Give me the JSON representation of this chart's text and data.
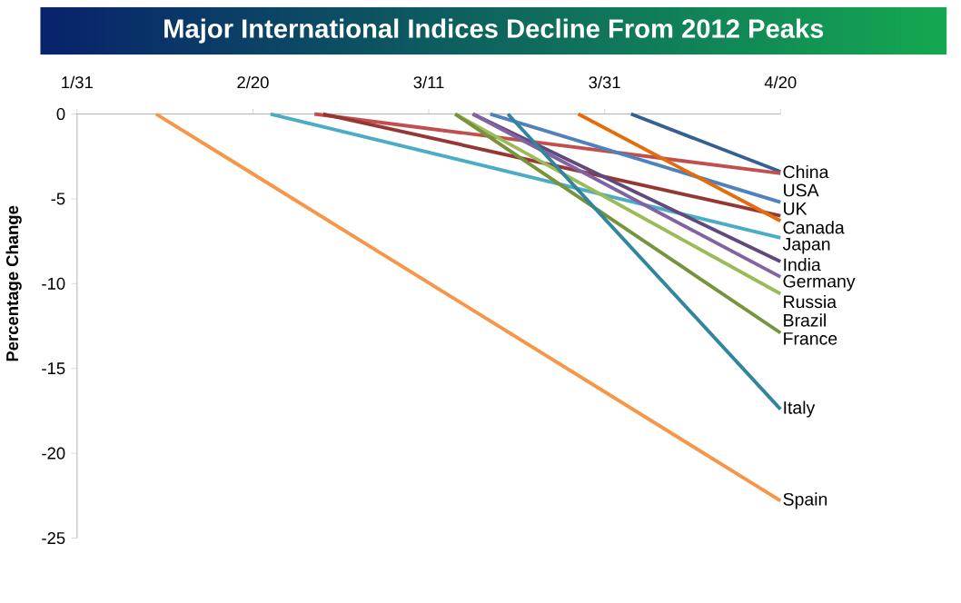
{
  "chart_data": {
    "type": "line",
    "title": "Major International Indices Decline From 2012 Peaks",
    "ylabel": "Percentage Change",
    "xlim": [
      "2012-01-31",
      "2012-04-20"
    ],
    "xticks": [
      {
        "value": "2012-01-31",
        "label": "1/31"
      },
      {
        "value": "2012-02-20",
        "label": "2/20"
      },
      {
        "value": "2012-03-11",
        "label": "3/11"
      },
      {
        "value": "2012-03-31",
        "label": "3/31"
      },
      {
        "value": "2012-04-20",
        "label": "4/20"
      }
    ],
    "ylim": [
      -25,
      0
    ],
    "yticks": [
      0,
      -5,
      -10,
      -15,
      -20,
      -25
    ],
    "grid": false,
    "legend": false,
    "marker": "none",
    "line_style": "solid",
    "series": [
      {
        "name": "China",
        "color": "#376092",
        "x": [
          "2012-04-03",
          "2012-04-20"
        ],
        "values": [
          0,
          -3.4
        ]
      },
      {
        "name": "USA",
        "color": "#c0504d",
        "x": [
          "2012-02-27",
          "2012-04-20"
        ],
        "values": [
          0,
          -3.5
        ]
      },
      {
        "name": "UK",
        "color": "#4f81bd",
        "x": [
          "2012-03-18",
          "2012-04-20"
        ],
        "values": [
          0,
          -5.2
        ]
      },
      {
        "name": "Canada",
        "color": "#953735",
        "x": [
          "2012-02-28",
          "2012-04-20"
        ],
        "values": [
          0,
          -6.0
        ]
      },
      {
        "name": "Japan",
        "color": "#e46c0a",
        "x": [
          "2012-03-28",
          "2012-04-20"
        ],
        "values": [
          0,
          -6.3
        ]
      },
      {
        "name": "India",
        "color": "#4bacc6",
        "x": [
          "2012-02-22",
          "2012-04-20"
        ],
        "values": [
          0,
          -7.3
        ]
      },
      {
        "name": "Germany",
        "color": "#604a7b",
        "x": [
          "2012-03-16",
          "2012-04-20"
        ],
        "values": [
          0,
          -8.7
        ]
      },
      {
        "name": "Russia",
        "color": "#8064a2",
        "x": [
          "2012-03-16",
          "2012-04-20"
        ],
        "values": [
          0,
          -9.6
        ]
      },
      {
        "name": "Brazil",
        "color": "#9bbb59",
        "x": [
          "2012-03-14",
          "2012-04-20"
        ],
        "values": [
          0,
          -10.6
        ]
      },
      {
        "name": "France",
        "color": "#77933c",
        "x": [
          "2012-03-14",
          "2012-04-20"
        ],
        "values": [
          0,
          -12.9
        ]
      },
      {
        "name": "Italy",
        "color": "#31859c",
        "x": [
          "2012-03-20",
          "2012-04-20"
        ],
        "values": [
          0,
          -17.4
        ]
      },
      {
        "name": "Spain",
        "color": "#f79646",
        "x": [
          "2012-02-09",
          "2012-04-20"
        ],
        "values": [
          0,
          -22.8
        ]
      }
    ]
  }
}
